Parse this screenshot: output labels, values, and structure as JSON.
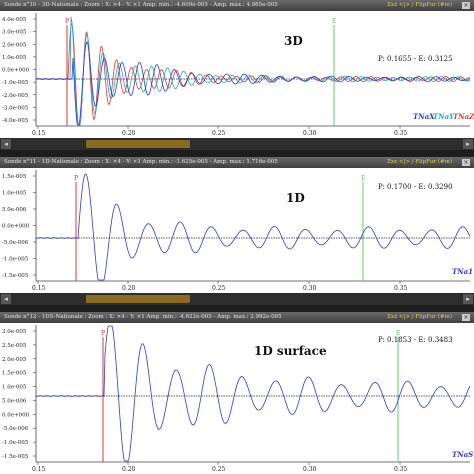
{
  "panels": [
    {
      "title": "Sonde n°10 - 3D-Nationale : Zoom : X: ×4 - Y: ×1 Amp. min.: -4.609e-005 - Amp. max.: 4.965e-005",
      "tools": "Zxx <|> / FlipFur (#m)",
      "label": "3D",
      "info": "P: 0.1655 - E: 0.3125",
      "ticks_y": [
        "4.0e-005",
        "3.0e-005",
        "2.0e-005",
        "1.0e-005",
        "0.0e+000",
        "-1.0e-005",
        "-2.0e-005",
        "-3.0e-005",
        "-4.0e-005"
      ],
      "ticks_x": [
        "0.15",
        "0.20",
        "0.25",
        "0.30",
        "0.35"
      ],
      "legend": [
        {
          "text": "TNaX",
          "color": "#2b3bd6"
        },
        {
          "text": "TNaY",
          "color": "#22a8c8"
        },
        {
          "text": "TNaZ",
          "color": "#d83c2c"
        }
      ],
      "marker_p": "P",
      "marker_e": "E"
    },
    {
      "title": "Sonde n°11 - 1D-Nationale : Zoom : X: ×4 - Y: ×1 Amp. min.: -1.625e-005 - Amp. max.: 1.716e-005",
      "tools": "Zxx <|> / FlipFur (#m)",
      "label": "1D",
      "info": "P: 0.1700 - E: 0.3290",
      "ticks_y": [
        "1.5e-005",
        "1.0e-005",
        "5.0e-006",
        "0.0e+000",
        "-5.0e-006",
        "-1.0e-005",
        "-1.5e-005"
      ],
      "ticks_x": [
        "0.15",
        "0.20",
        "0.25",
        "0.30",
        "0.35"
      ],
      "legend": [
        {
          "text": "TNa1",
          "color": "#2b3bd6"
        }
      ],
      "marker_p": "P",
      "marker_e": "E"
    },
    {
      "title": "Sonde n°12 - 1DS-Nationale : Zoom : X: ×4 - Y: ×1 Amp. min.: -4.622e-005 - Amp. max.: 2.992e-005",
      "tools": "Zxx <|> / FlipFur (#m)",
      "label": "1D surface",
      "info": "P: 0.1853 - E: 0.3483",
      "ticks_y": [
        "3.0e-005",
        "2.5e-005",
        "2.0e-005",
        "1.5e-005",
        "1.0e-005",
        "5.0e-006",
        "0.0e+000",
        "-5.0e-006",
        "-1.0e-005",
        "-1.5e-005"
      ],
      "ticks_x": [
        "0.15",
        "0.20",
        "0.25",
        "0.30",
        "0.35"
      ],
      "legend": [
        {
          "text": "TNaS",
          "color": "#2b3bd6"
        }
      ],
      "marker_p": "P",
      "marker_e": "E"
    }
  ],
  "colors": {
    "p_marker": "#e02020",
    "e_marker": "#4cd04c",
    "trace": "#2b3bd6"
  }
}
